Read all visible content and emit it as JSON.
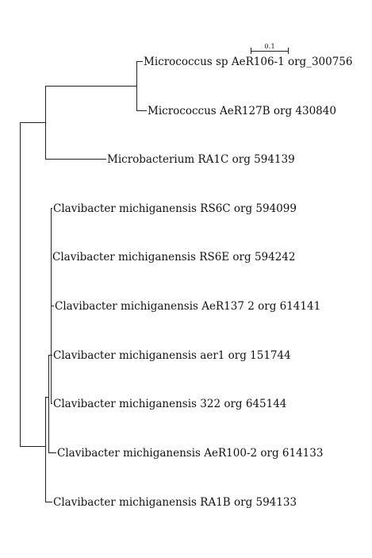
{
  "tree": {
    "scale_bar_label": "0.1",
    "leaves": [
      {
        "id": "micrococcus-sp",
        "name": "Micrococcus sp AeR106-1 org_300756"
      },
      {
        "id": "micrococcus-aer127b",
        "name": "Micrococcus AeR127B org 430840"
      },
      {
        "id": "microbacterium",
        "name": "Microbacterium RA1C org 594139"
      },
      {
        "id": "clavibacter-rs6c",
        "name": "Clavibacter michiganensis RS6C org 594099"
      },
      {
        "id": "clavibacter-rs6e",
        "name": "Clavibacter michiganensis RS6E org 594242"
      },
      {
        "id": "clavibacter-aer137",
        "name": "Clavibacter michiganensis AeR137 2 org 614141"
      },
      {
        "id": "clavibacter-aer1",
        "name": "Clavibacter michiganensis aer1 org 151744"
      },
      {
        "id": "clavibacter-322",
        "name": "Clavibacter michiganensis 322 org 645144"
      },
      {
        "id": "clavibacter-aer100",
        "name": "Clavibacter michiganensis AeR100-2 org 614133"
      },
      {
        "id": "clavibacter-ra1b",
        "name": "Clavibacter michiganensis RA1B org 594133"
      }
    ]
  }
}
